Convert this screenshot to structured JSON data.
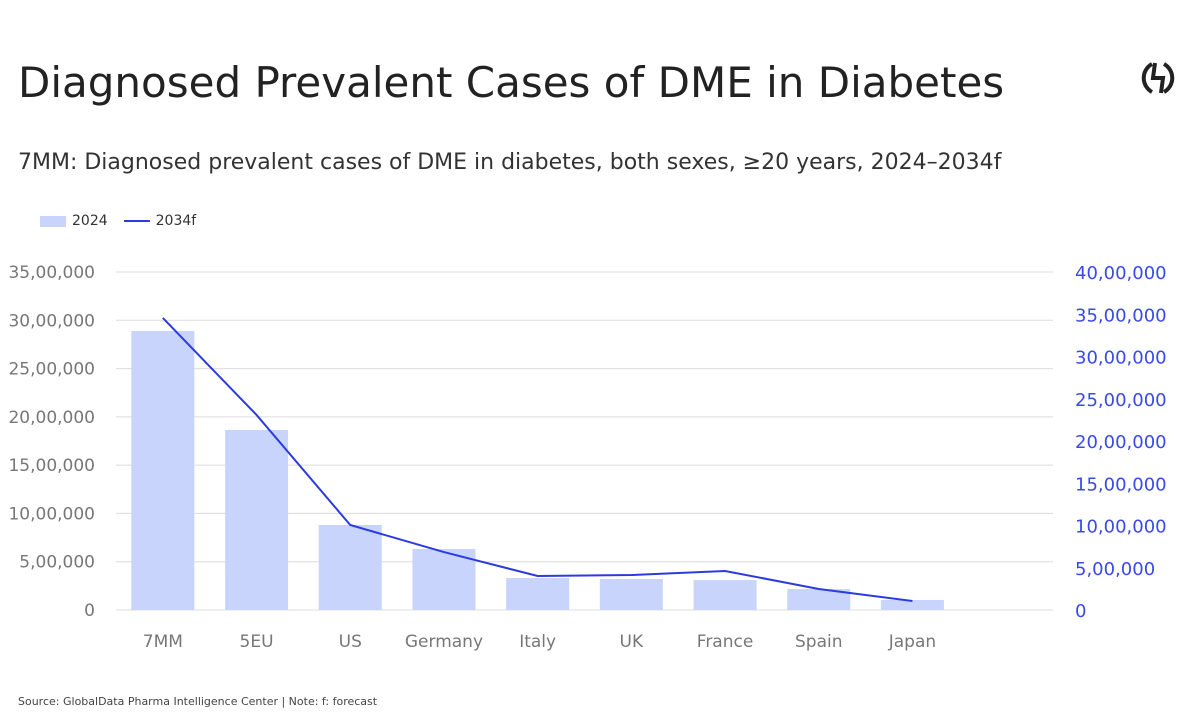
{
  "header": {
    "title": "Diagnosed Prevalent Cases of DME in Diabetes",
    "logo": "GlobalData"
  },
  "footer": {
    "source": "Source: GlobalData Pharma Intelligence Center | Note: f: forecast"
  },
  "chart_data": {
    "type": "bar",
    "title": "7MM: Diagnosed prevalent cases of DME in diabetes, both sexes, ≥20 years, 2024–2034f",
    "categories": [
      "7MM",
      "5EU",
      "US",
      "Germany",
      "Italy",
      "UK",
      "France",
      "Spain",
      "Japan"
    ],
    "series": [
      {
        "name": "2024",
        "type": "bar",
        "axis": "left",
        "color": "#c8d4fb",
        "values": [
          2889000,
          1864000,
          880000,
          632000,
          331000,
          321000,
          310000,
          217000,
          104000
        ]
      },
      {
        "name": "2034f",
        "type": "line",
        "axis": "right",
        "color": "#2b3be0",
        "values": [
          3456000,
          2308000,
          1006000,
          686000,
          402000,
          414000,
          462000,
          249000,
          107000
        ]
      }
    ],
    "y_left": {
      "range": [
        0,
        3500000
      ],
      "ticks": [
        "0",
        "5,00,000",
        "10,00,000",
        "15,00,000",
        "20,00,000",
        "25,00,000",
        "30,00,000",
        "35,00,000"
      ]
    },
    "y_right": {
      "range": [
        0,
        4000000
      ],
      "ticks": [
        "0",
        "5,00,000",
        "10,00,000",
        "15,00,000",
        "20,00,000",
        "25,00,000",
        "30,00,000",
        "35,00,000",
        "40,00,000"
      ],
      "color": "#3a4ae8"
    },
    "grid": true,
    "legend": "top-left"
  }
}
